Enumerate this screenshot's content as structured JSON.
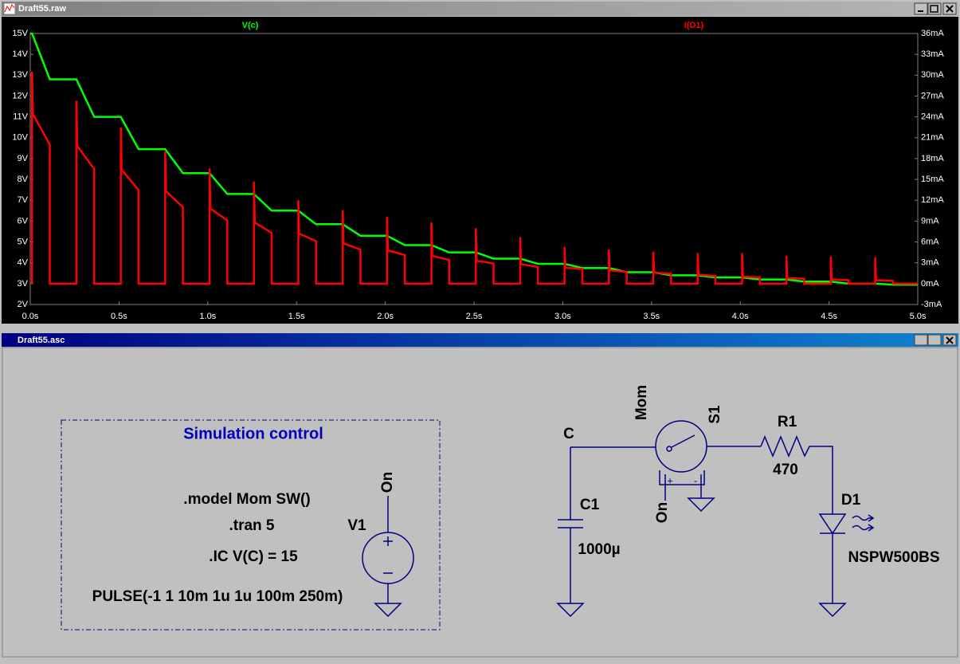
{
  "windows": {
    "plot_title": "Draft55.raw",
    "schematic_title": "Draft55.asc"
  },
  "chart_data": {
    "type": "line",
    "xlim": [
      0,
      5
    ],
    "xticks": [
      {
        "value": 0,
        "label": "0.0s"
      },
      {
        "value": 0.5,
        "label": "0.5s"
      },
      {
        "value": 1,
        "label": "1.0s"
      },
      {
        "value": 1.5,
        "label": "1.5s"
      },
      {
        "value": 2,
        "label": "2.0s"
      },
      {
        "value": 2.5,
        "label": "2.5s"
      },
      {
        "value": 3,
        "label": "3.0s"
      },
      {
        "value": 3.5,
        "label": "3.5s"
      },
      {
        "value": 4,
        "label": "4.0s"
      },
      {
        "value": 4.5,
        "label": "4.5s"
      },
      {
        "value": 5,
        "label": "5.0s"
      }
    ],
    "ylim": [
      2,
      15
    ],
    "yticks": [
      {
        "value": 2,
        "label": "2V"
      },
      {
        "value": 3,
        "label": "3V"
      },
      {
        "value": 4,
        "label": "4V"
      },
      {
        "value": 5,
        "label": "5V"
      },
      {
        "value": 6,
        "label": "6V"
      },
      {
        "value": 7,
        "label": "7V"
      },
      {
        "value": 8,
        "label": "8V"
      },
      {
        "value": 9,
        "label": "9V"
      },
      {
        "value": 10,
        "label": "10V"
      },
      {
        "value": 11,
        "label": "11V"
      },
      {
        "value": 12,
        "label": "12V"
      },
      {
        "value": 13,
        "label": "13V"
      },
      {
        "value": 14,
        "label": "14V"
      },
      {
        "value": 15,
        "label": "15V"
      }
    ],
    "y2lim": [
      -3,
      36
    ],
    "y2ticks": [
      {
        "value": -3,
        "label": "-3mA"
      },
      {
        "value": 0,
        "label": "0mA"
      },
      {
        "value": 3,
        "label": "3mA"
      },
      {
        "value": 6,
        "label": "6mA"
      },
      {
        "value": 9,
        "label": "9mA"
      },
      {
        "value": 12,
        "label": "12mA"
      },
      {
        "value": 15,
        "label": "15mA"
      },
      {
        "value": 18,
        "label": "18mA"
      },
      {
        "value": 21,
        "label": "21mA"
      },
      {
        "value": 24,
        "label": "24mA"
      },
      {
        "value": 27,
        "label": "27mA"
      },
      {
        "value": 30,
        "label": "30mA"
      },
      {
        "value": 33,
        "label": "33mA"
      },
      {
        "value": 36,
        "label": "36mA"
      }
    ],
    "grid": false,
    "series": [
      {
        "name": "V(c)",
        "color": "#00ff00",
        "axis": "y",
        "x": [
          0,
          0.01,
          0.11,
          0.26,
          0.36,
          0.51,
          0.61,
          0.76,
          0.86,
          1.01,
          1.11,
          1.26,
          1.36,
          1.51,
          1.61,
          1.76,
          1.86,
          2.01,
          2.11,
          2.26,
          2.36,
          2.51,
          2.61,
          2.76,
          2.86,
          3.01,
          3.11,
          3.26,
          3.36,
          3.51,
          3.61,
          3.76,
          3.86,
          4.01,
          4.11,
          4.26,
          4.36,
          4.51,
          4.61,
          4.76,
          4.86,
          5.0
        ],
        "values": [
          15,
          15,
          12.8,
          12.8,
          11.0,
          11.0,
          9.45,
          9.45,
          8.3,
          8.3,
          7.3,
          7.3,
          6.5,
          6.5,
          5.85,
          5.85,
          5.3,
          5.3,
          4.85,
          4.85,
          4.5,
          4.5,
          4.2,
          4.2,
          3.95,
          3.95,
          3.75,
          3.75,
          3.55,
          3.55,
          3.4,
          3.4,
          3.3,
          3.3,
          3.2,
          3.2,
          3.1,
          3.1,
          3.0,
          3.0,
          2.95,
          2.95
        ]
      },
      {
        "name": "I(D1)",
        "color": "#ff0000",
        "axis": "y2",
        "x": [
          0.01,
          0.01,
          0.015,
          0.11,
          0.11,
          0.26,
          0.26,
          0.265,
          0.36,
          0.36,
          0.51,
          0.51,
          0.515,
          0.61,
          0.61,
          0.76,
          0.76,
          0.765,
          0.86,
          0.86,
          1.01,
          1.01,
          1.015,
          1.11,
          1.11,
          1.26,
          1.26,
          1.265,
          1.36,
          1.36,
          1.51,
          1.51,
          1.515,
          1.61,
          1.61,
          1.76,
          1.76,
          1.765,
          1.86,
          1.86,
          2.01,
          2.01,
          2.015,
          2.11,
          2.11,
          2.26,
          2.26,
          2.265,
          2.36,
          2.36,
          2.51,
          2.51,
          2.515,
          2.61,
          2.61,
          2.76,
          2.76,
          2.765,
          2.86,
          2.86,
          3.01,
          3.01,
          3.015,
          3.11,
          3.11,
          3.26,
          3.26,
          3.265,
          3.36,
          3.36,
          3.51,
          3.51,
          3.515,
          3.61,
          3.61,
          3.76,
          3.76,
          3.765,
          3.86,
          3.86,
          4.01,
          4.01,
          4.015,
          4.11,
          4.11,
          4.26,
          4.26,
          4.265,
          4.36,
          4.36,
          4.51,
          4.51,
          4.515,
          4.61,
          4.61,
          4.76,
          4.76,
          4.765,
          4.86,
          4.86,
          5.0
        ],
        "values": [
          0,
          30.5,
          24.4,
          20.0,
          0,
          0,
          26.3,
          19.8,
          16.5,
          0,
          0,
          22.5,
          16.4,
          13.5,
          0,
          0,
          19.0,
          13.3,
          11.0,
          0,
          0,
          16.6,
          10.8,
          9.1,
          0,
          0,
          14.7,
          8.8,
          7.3,
          0,
          0,
          12.0,
          7.2,
          6.1,
          0,
          0,
          10.6,
          5.8,
          4.9,
          0,
          0,
          9.6,
          4.8,
          4.1,
          0,
          0,
          8.8,
          4.0,
          3.4,
          0,
          0,
          8.0,
          3.3,
          2.9,
          0,
          0,
          6.7,
          2.8,
          2.4,
          0,
          0,
          5.3,
          2.3,
          2.1,
          0,
          0,
          4.9,
          1.9,
          1.7,
          0,
          0,
          4.6,
          1.6,
          1.4,
          0,
          0,
          4.4,
          1.3,
          1.1,
          0,
          0,
          4.4,
          1.0,
          0.9,
          0,
          0,
          4.0,
          0.8,
          0.7,
          0,
          0,
          3.9,
          0.6,
          0.5,
          0,
          0,
          3.8,
          0.5,
          0.4,
          0,
          0
        ]
      }
    ]
  },
  "schematic": {
    "sim_title": "Simulation control",
    "directives": [
      ".model Mom SW()",
      ".tran 5",
      ".IC V(C) = 15"
    ],
    "pulse": "PULSE(-1 1 10m 1u 1u 100m 250m)",
    "v1_name": "V1",
    "v1_net": "On",
    "node_c": "C",
    "switch_model": "Mom",
    "switch_name": "S1",
    "switch_net": "On",
    "switch_plus": "+",
    "switch_minus": "-",
    "r1_name": "R1",
    "r1_value": "470",
    "c1_name": "C1",
    "c1_value": "1000µ",
    "d1_name": "D1",
    "d1_value": "NSPW500BS"
  }
}
